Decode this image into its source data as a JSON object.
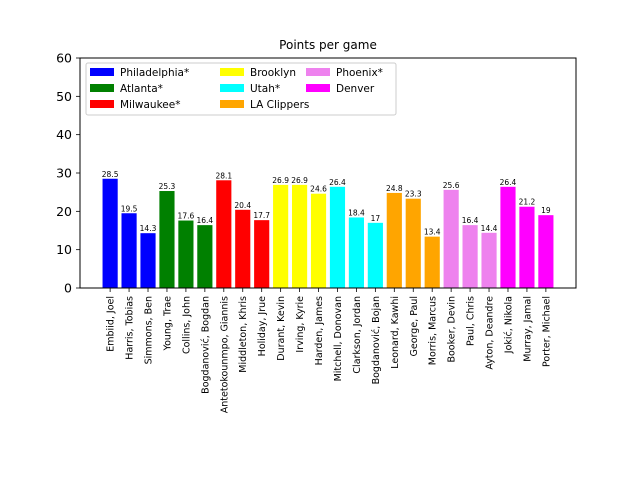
{
  "chart_data": {
    "type": "bar",
    "title": "Points per game",
    "xlabel": "",
    "ylabel": "",
    "ylim": [
      0,
      60
    ],
    "yticks": [
      0,
      10,
      20,
      30,
      40,
      50,
      60
    ],
    "grid": false,
    "legend_position": "top-left",
    "categories": [
      "Embiid, Joel",
      "Harris, Tobias",
      "Simmons, Ben",
      "Young, Trae",
      "Collins, John",
      "Bogdanović, Bogdan",
      "Antetokounmpo, Giannis",
      "Middleton, Khris",
      "Holiday, Jrue",
      "Durant, Kevin",
      "Irving, Kyrie",
      "Harden, James",
      "Mitchell, Donovan",
      "Clarkson, Jordan",
      "Bogdanović, Bojan",
      "Leonard, Kawhi",
      "George, Paul",
      "Morris, Marcus",
      "Booker, Devin",
      "Paul, Chris",
      "Ayton, Deandre",
      "Jokić, Nikola",
      "Murray, Jamal",
      "Porter, Michael"
    ],
    "values": [
      28.5,
      19.5,
      14.3,
      25.3,
      17.6,
      16.4,
      28.1,
      20.4,
      17.7,
      26.9,
      26.9,
      24.6,
      26.4,
      18.4,
      17,
      24.8,
      23.3,
      13.4,
      25.6,
      16.4,
      14.4,
      26.4,
      21.2,
      19
    ],
    "value_labels": [
      "28.5",
      "19.5",
      "14.3",
      "25.3",
      "17.6",
      "16.4",
      "28.1",
      "20.4",
      "17.7",
      "26.9",
      "26.9",
      "24.6",
      "26.4",
      "18.4",
      "17",
      "24.8",
      "23.3",
      "13.4",
      "25.6",
      "16.4",
      "14.4",
      "26.4",
      "21.2",
      "19"
    ],
    "bar_series": [
      0,
      0,
      0,
      1,
      1,
      1,
      2,
      2,
      2,
      3,
      3,
      3,
      4,
      4,
      4,
      5,
      5,
      5,
      6,
      6,
      6,
      7,
      7,
      7
    ],
    "series": [
      {
        "name": "Philadelphia*",
        "color": "#0000ff"
      },
      {
        "name": "Atlanta*",
        "color": "#008000"
      },
      {
        "name": "Milwaukee*",
        "color": "#ff0000"
      },
      {
        "name": "Brooklyn",
        "color": "#ffff00"
      },
      {
        "name": "Utah*",
        "color": "#00ffff"
      },
      {
        "name": "LA Clippers",
        "color": "#ffa500"
      },
      {
        "name": "Phoenix*",
        "color": "#ee82ee"
      },
      {
        "name": "Denver",
        "color": "#ff00ff"
      }
    ]
  }
}
